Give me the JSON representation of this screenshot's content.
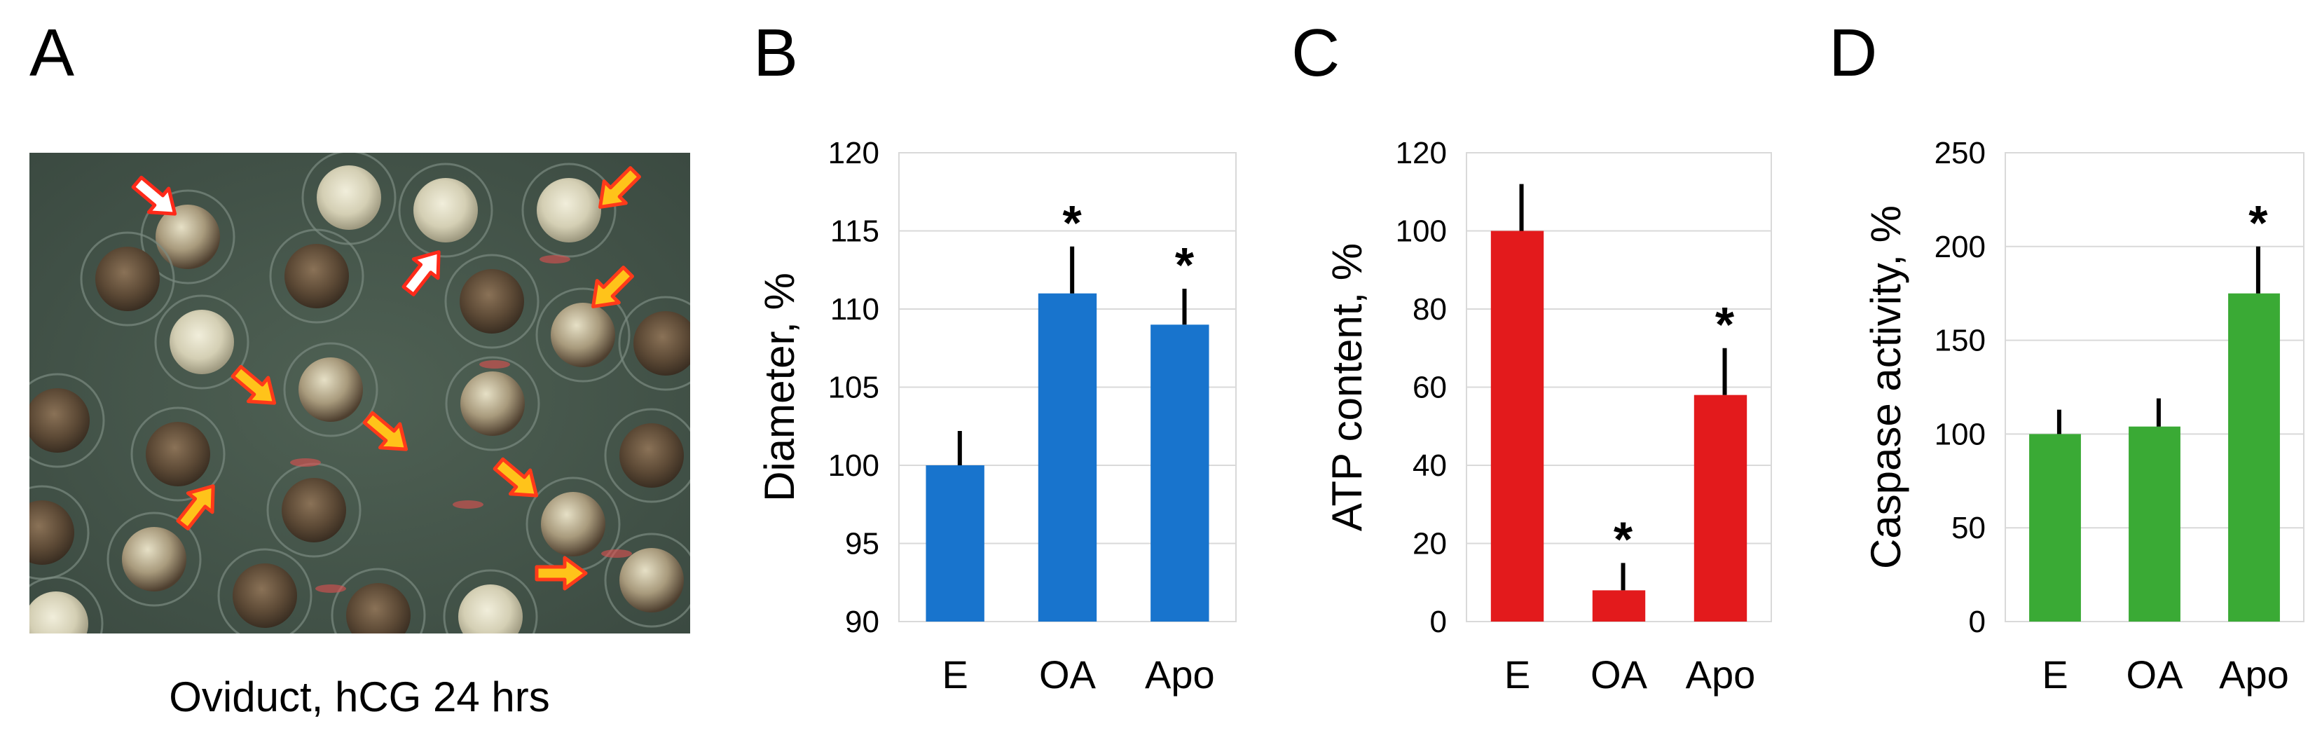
{
  "panels": {
    "A": {
      "letter": "A",
      "caption": "Oviduct, hCG 24 hrs",
      "photo_description_items": [
        "eggs",
        "arrows"
      ]
    },
    "B": {
      "letter": "B"
    },
    "C": {
      "letter": "C"
    },
    "D": {
      "letter": "D"
    }
  },
  "chart_data": [
    {
      "id": "B",
      "type": "bar",
      "categories": [
        "E",
        "OA",
        "Apo"
      ],
      "values": [
        100,
        111,
        109
      ],
      "errors": [
        2.2,
        3.0,
        2.3
      ],
      "significant": [
        false,
        true,
        true
      ],
      "significance_marker": "*",
      "ylabel": "Diameter, %",
      "xlabel": "",
      "ylim": [
        90,
        120
      ],
      "yticks": [
        90,
        95,
        100,
        105,
        110,
        115,
        120
      ],
      "color": "#1874cd",
      "grid": true
    },
    {
      "id": "C",
      "type": "bar",
      "categories": [
        "E",
        "OA",
        "Apo"
      ],
      "values": [
        100,
        8,
        58
      ],
      "errors": [
        12,
        7,
        12
      ],
      "significant": [
        false,
        true,
        true
      ],
      "significance_marker": "*",
      "ylabel": "ATP content, %",
      "xlabel": "",
      "ylim": [
        0,
        120
      ],
      "yticks": [
        0,
        20,
        40,
        60,
        80,
        100,
        120
      ],
      "color": "#e31a1c",
      "grid": true
    },
    {
      "id": "D",
      "type": "bar",
      "categories": [
        "E",
        "OA",
        "Apo"
      ],
      "values": [
        100,
        104,
        175
      ],
      "errors": [
        13,
        15,
        25
      ],
      "significant": [
        false,
        false,
        true
      ],
      "significance_marker": "*",
      "ylabel": "Caspase activity, %",
      "xlabel": "",
      "ylim": [
        0,
        250
      ],
      "yticks": [
        0,
        50,
        100,
        150,
        200,
        250
      ],
      "color": "#3aaa35",
      "grid": true
    }
  ]
}
